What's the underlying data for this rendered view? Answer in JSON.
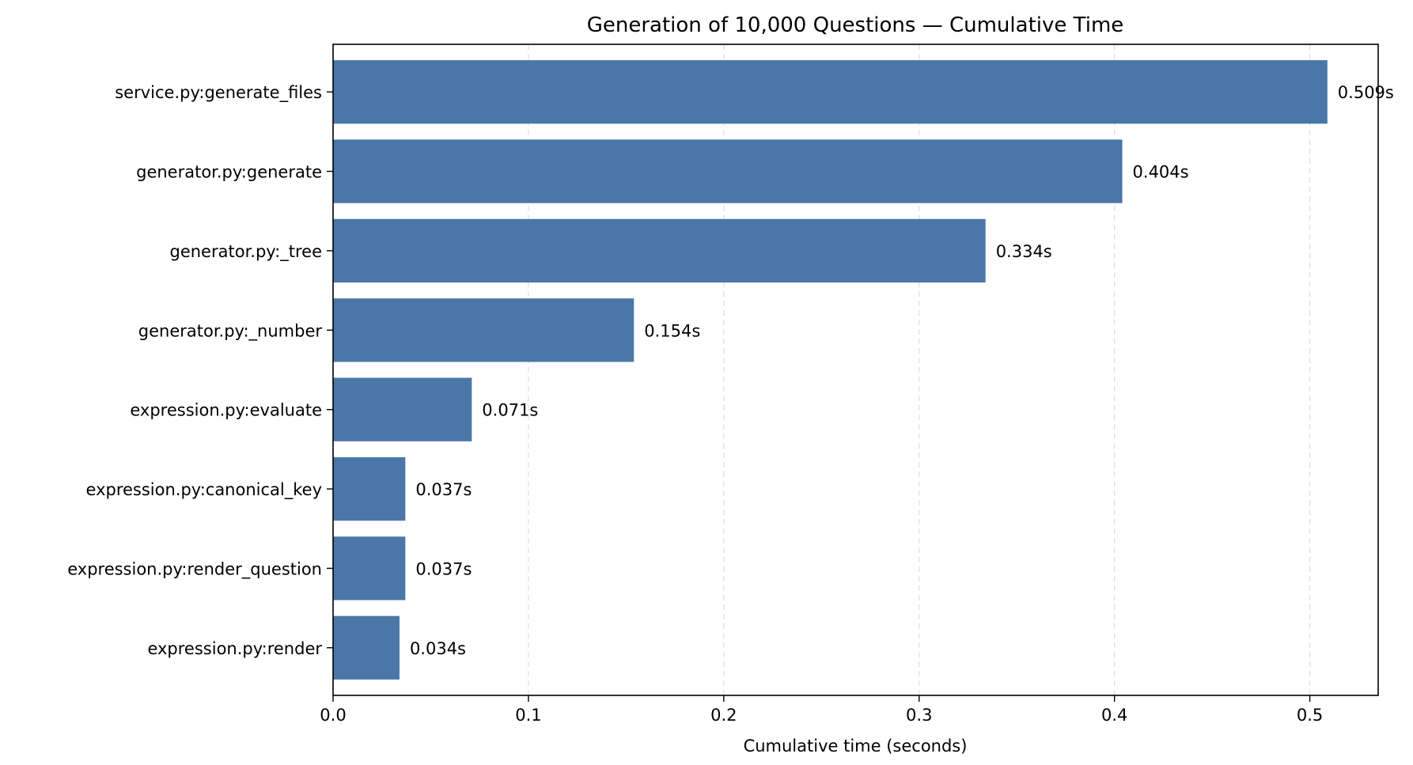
{
  "chart_data": {
    "type": "bar",
    "orientation": "horizontal",
    "title": "Generation of 10,000 Questions — Cumulative Time",
    "xlabel": "Cumulative time (seconds)",
    "ylabel": "",
    "categories": [
      "service.py:generate_files",
      "generator.py:generate",
      "generator.py:_tree",
      "generator.py:_number",
      "expression.py:evaluate",
      "expression.py:canonical_key",
      "expression.py:render_question",
      "expression.py:render"
    ],
    "values": [
      0.509,
      0.404,
      0.334,
      0.154,
      0.071,
      0.037,
      0.037,
      0.034
    ],
    "value_labels": [
      "0.509s",
      "0.404s",
      "0.334s",
      "0.154s",
      "0.071s",
      "0.037s",
      "0.037s",
      "0.034s"
    ],
    "xlim": [
      0,
      0.535
    ],
    "xticks": [
      0.0,
      0.1,
      0.2,
      0.3,
      0.4,
      0.5
    ],
    "xtick_labels": [
      "0.0",
      "0.1",
      "0.2",
      "0.3",
      "0.4",
      "0.5"
    ],
    "grid": {
      "x": true,
      "y": false,
      "style": "dashed"
    },
    "colors": {
      "bar": "#4a77a7",
      "grid": "#dddddd",
      "axis": "#000000"
    }
  }
}
